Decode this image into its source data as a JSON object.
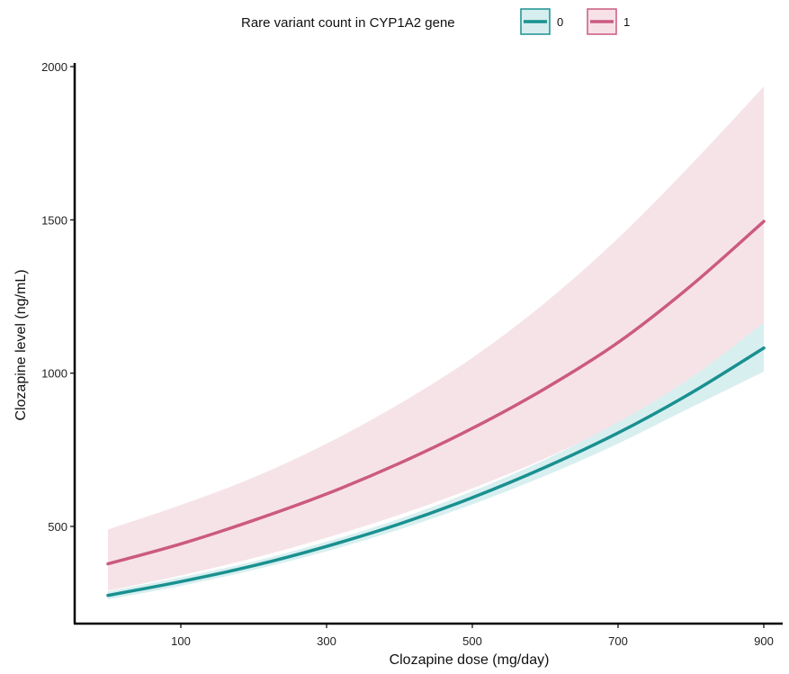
{
  "chart_data": {
    "type": "line",
    "xlabel": "Clozapine dose (mg/day)",
    "ylabel": "Clozapine level (ng/mL)",
    "xlim": [
      0,
      900
    ],
    "ylim": [
      200,
      2000
    ],
    "x_ticks": [
      100,
      300,
      500,
      700,
      900
    ],
    "y_ticks": [
      500,
      1000,
      1500,
      2000
    ],
    "grid": false,
    "legend": {
      "title": "Rare variant count in CYP1A2 gene",
      "position": "top"
    },
    "x": [
      0,
      100,
      200,
      300,
      400,
      500,
      600,
      700,
      800,
      900
    ],
    "series": [
      {
        "name": "0",
        "color": "#1a9090",
        "band_color": "#d6eeef",
        "values": [
          275,
          320,
          372,
          435,
          508,
          594,
          693,
          805,
          935,
          1082
        ],
        "lower": [
          262,
          306,
          358,
          419,
          490,
          572,
          665,
          770,
          888,
          1005
        ],
        "upper": [
          288,
          334,
          386,
          450,
          525,
          615,
          718,
          840,
          985,
          1165
        ]
      },
      {
        "name": "1",
        "color": "#cc5a80",
        "band_color": "#f6e1e7",
        "values": [
          378,
          443,
          520,
          606,
          706,
          820,
          950,
          1100,
          1285,
          1495
        ],
        "lower": [
          290,
          340,
          397,
          463,
          538,
          624,
          722,
          836,
          985,
          1160
        ],
        "upper": [
          490,
          570,
          660,
          770,
          900,
          1050,
          1230,
          1440,
          1680,
          1935
        ]
      }
    ]
  }
}
